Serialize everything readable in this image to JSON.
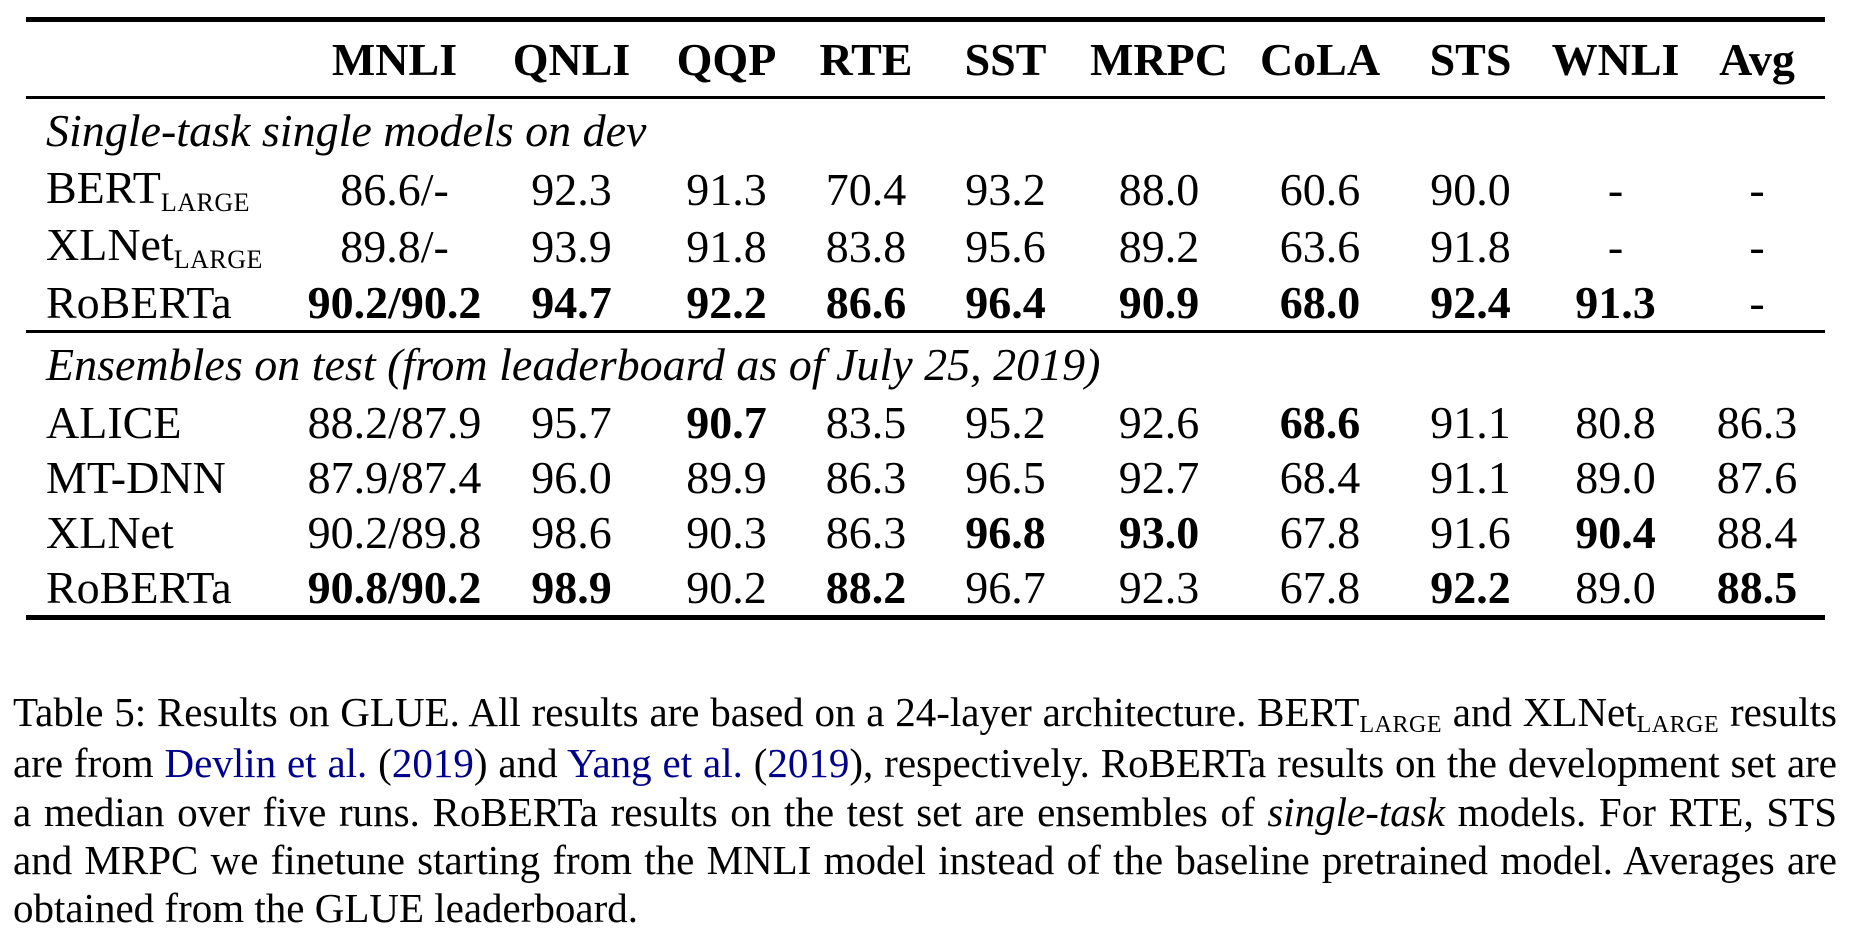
{
  "colors": {
    "background": "#ffffff",
    "text": "#000000",
    "citation_link_blue": "#00008B"
  },
  "table": {
    "columns": [
      "",
      "MNLI",
      "QNLI",
      "QQP",
      "RTE",
      "SST",
      "MRPC",
      "CoLA",
      "STS",
      "WNLI",
      "Avg"
    ],
    "sections": [
      {
        "header": "Single-task single models on dev",
        "rows": [
          {
            "model": "BERT",
            "model_sub": "LARGE",
            "cells": [
              "86.6/-",
              "92.3",
              "91.3",
              "70.4",
              "93.2",
              "88.0",
              "60.6",
              "90.0",
              "-",
              "-"
            ],
            "bold": [
              0,
              0,
              0,
              0,
              0,
              0,
              0,
              0,
              0,
              0
            ]
          },
          {
            "model": "XLNet",
            "model_sub": "LARGE",
            "cells": [
              "89.8/-",
              "93.9",
              "91.8",
              "83.8",
              "95.6",
              "89.2",
              "63.6",
              "91.8",
              "-",
              "-"
            ],
            "bold": [
              0,
              0,
              0,
              0,
              0,
              0,
              0,
              0,
              0,
              0
            ]
          },
          {
            "model": "RoBERTa",
            "model_sub": "",
            "cells": [
              "90.2/90.2",
              "94.7",
              "92.2",
              "86.6",
              "96.4",
              "90.9",
              "68.0",
              "92.4",
              "91.3",
              "-"
            ],
            "bold": [
              1,
              1,
              1,
              1,
              1,
              1,
              1,
              1,
              1,
              0
            ]
          }
        ]
      },
      {
        "header": "Ensembles on test (from leaderboard as of July 25, 2019)",
        "rows": [
          {
            "model": "ALICE",
            "model_sub": "",
            "cells": [
              "88.2/87.9",
              "95.7",
              "90.7",
              "83.5",
              "95.2",
              "92.6",
              "68.6",
              "91.1",
              "80.8",
              "86.3"
            ],
            "bold": [
              0,
              0,
              1,
              0,
              0,
              0,
              1,
              0,
              0,
              0
            ]
          },
          {
            "model": "MT-DNN",
            "model_sub": "",
            "cells": [
              "87.9/87.4",
              "96.0",
              "89.9",
              "86.3",
              "96.5",
              "92.7",
              "68.4",
              "91.1",
              "89.0",
              "87.6"
            ],
            "bold": [
              0,
              0,
              0,
              0,
              0,
              0,
              0,
              0,
              0,
              0
            ]
          },
          {
            "model": "XLNet",
            "model_sub": "",
            "cells": [
              "90.2/89.8",
              "98.6",
              "90.3",
              "86.3",
              "96.8",
              "93.0",
              "67.8",
              "91.6",
              "90.4",
              "88.4"
            ],
            "bold": [
              0,
              0,
              0,
              0,
              1,
              1,
              0,
              0,
              1,
              0
            ]
          },
          {
            "model": "RoBERTa",
            "model_sub": "",
            "cells": [
              "90.8/90.2",
              "98.9",
              "90.2",
              "88.2",
              "96.7",
              "92.3",
              "67.8",
              "92.2",
              "89.0",
              "88.5"
            ],
            "bold": [
              1,
              1,
              0,
              1,
              0,
              0,
              0,
              1,
              0,
              1
            ]
          }
        ]
      }
    ]
  },
  "caption": {
    "segments": [
      {
        "style": "plain",
        "text": "Table 5: Results on GLUE. All results are based on a 24-layer architecture. BERT"
      },
      {
        "style": "subcaps",
        "text": "LARGE"
      },
      {
        "style": "plain",
        "text": " and XLNet"
      },
      {
        "style": "subcaps",
        "text": "LARGE"
      },
      {
        "style": "plain",
        "text": " results are from "
      },
      {
        "style": "link",
        "text": "Devlin et al."
      },
      {
        "style": "plain",
        "text": " ("
      },
      {
        "style": "link",
        "text": "2019"
      },
      {
        "style": "plain",
        "text": ") and "
      },
      {
        "style": "link",
        "text": "Yang et al."
      },
      {
        "style": "plain",
        "text": " ("
      },
      {
        "style": "link",
        "text": "2019"
      },
      {
        "style": "plain",
        "text": "), respectively. RoBERTa results on the development set are a median over five runs. RoBERTa results on the test set are ensembles of "
      },
      {
        "style": "italic",
        "text": "single-task"
      },
      {
        "style": "plain",
        "text": " models. For RTE, STS and MRPC we finetune starting from the MNLI model instead of the baseline pretrained model. Averages are obtained from the GLUE leaderboard."
      }
    ]
  }
}
